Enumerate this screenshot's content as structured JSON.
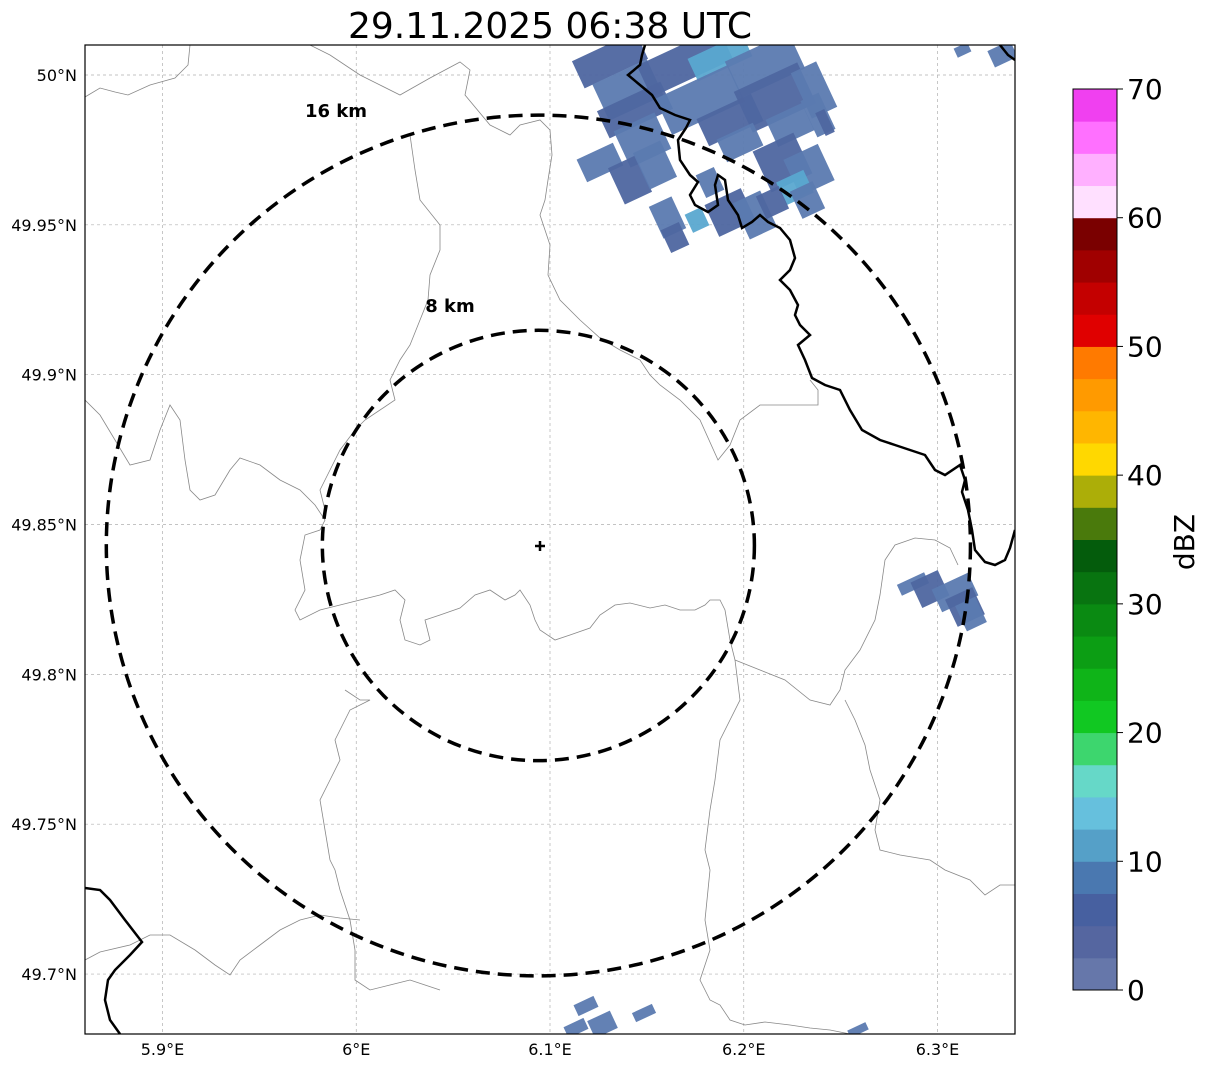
{
  "title": "29.11.2025 06:38 UTC",
  "map": {
    "lon_range": [
      5.86,
      6.34
    ],
    "lat_range": [
      49.68,
      50.01
    ],
    "x_ticks": [
      {
        "value": 5.9,
        "label": "5.9°E"
      },
      {
        "value": 6.0,
        "label": "6°E"
      },
      {
        "value": 6.1,
        "label": "6.1°E"
      },
      {
        "value": 6.2,
        "label": "6.2°E"
      },
      {
        "value": 6.3,
        "label": "6.3°E"
      }
    ],
    "y_ticks": [
      {
        "value": 50.0,
        "label": "50°N"
      },
      {
        "value": 49.95,
        "label": "49.95°N"
      },
      {
        "value": 49.9,
        "label": "49.9°N"
      },
      {
        "value": 49.85,
        "label": "49.85°N"
      },
      {
        "value": 49.8,
        "label": "49.8°N"
      },
      {
        "value": 49.75,
        "label": "49.75°N"
      },
      {
        "value": 49.7,
        "label": "49.7°N"
      }
    ],
    "center": {
      "lon": 6.094,
      "lat": 49.843
    },
    "rings": [
      {
        "label": "8 km",
        "lon_radius": 0.1115,
        "lat_radius": 0.0718
      },
      {
        "label": "16 km",
        "lon_radius": 0.223,
        "lat_radius": 0.1436
      }
    ],
    "grid": true
  },
  "colorbar": {
    "label": "dBZ",
    "min": 0,
    "max": 70,
    "tick_values": [
      0,
      10,
      20,
      30,
      40,
      50,
      60,
      70
    ],
    "tick_labels": [
      "0",
      "10",
      "20",
      "30",
      "40",
      "50",
      "60",
      "70"
    ],
    "colors": [
      "#6677aa",
      "#5566a0",
      "#4760a0",
      "#4a78b0",
      "#55a0c8",
      "#66c0dd",
      "#66d8c8",
      "#3dd66e",
      "#11c822",
      "#0fb418",
      "#0c9e14",
      "#0a8a12",
      "#087410",
      "#045c0c",
      "#4a7a0c",
      "#acae08",
      "#ffd800",
      "#ffb600",
      "#ff9a00",
      "#ff7a00",
      "#e00000",
      "#c40000",
      "#a00000",
      "#7a0000",
      "#ffe0ff",
      "#ffb0ff",
      "#ff70ff",
      "#f040f0"
    ]
  },
  "legend_colors": {
    "rain_dark": "#4e66a0",
    "rain_mid": "#5b7ab0",
    "rain_light": "#5aa8d0",
    "border_thin": "#888888",
    "border_thick": "#000000"
  }
}
